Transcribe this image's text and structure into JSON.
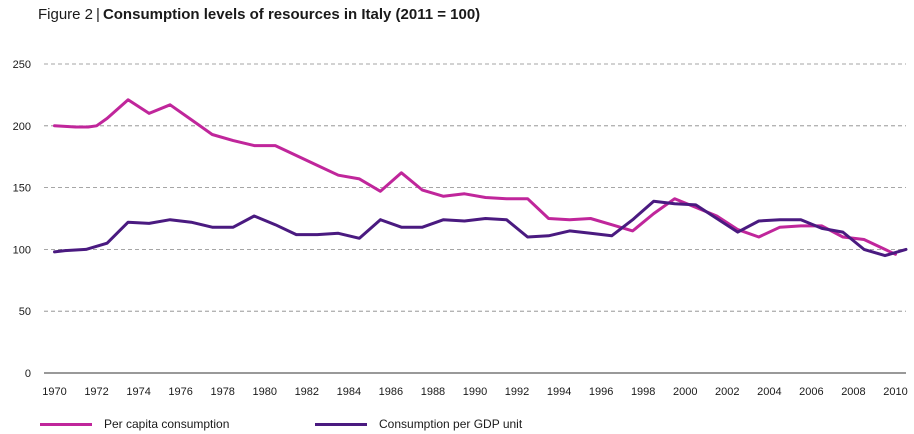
{
  "figure": {
    "prefix": "Figure 2",
    "separator": "|",
    "title": "Consumption levels of resources in Italy (2011 = 100)"
  },
  "chart_data": {
    "type": "line",
    "title": "Consumption levels of resources in Italy (2011 = 100)",
    "xlabel": "",
    "ylabel": "",
    "xlim": [
      1969.5,
      2010.5
    ],
    "ylim": [
      0,
      250
    ],
    "y_ticks": [
      0,
      50,
      100,
      150,
      200,
      250
    ],
    "x_ticks": [
      1970,
      1972,
      1974,
      1976,
      1978,
      1980,
      1982,
      1984,
      1986,
      1988,
      1990,
      1992,
      1994,
      1996,
      1998,
      2000,
      2002,
      2004,
      2006,
      2008,
      2010
    ],
    "grid": "horizontal dashed",
    "legend_position": "bottom",
    "series": [
      {
        "name": "Per capita consumption",
        "color": "#c0269b",
        "x": [
          1970,
          1971,
          1971.6,
          1972,
          1972.5,
          1973.5,
          1974.5,
          1975.5,
          1976.5,
          1977.5,
          1978.5,
          1979.5,
          1980.5,
          1981.5,
          1982.5,
          1983.5,
          1984.5,
          1985.5,
          1986.5,
          1987.5,
          1988.5,
          1989.5,
          1990.5,
          1991.5,
          1992.5,
          1993.5,
          1994.5,
          1995.5,
          1996.5,
          1997.5,
          1998.5,
          1999.5,
          2000.5,
          2001.5,
          2002.5,
          2003.5,
          2004.5,
          2005.5,
          2006.5,
          2007.5,
          2008.5,
          2009.5,
          2010
        ],
        "values": [
          200,
          199,
          199,
          200,
          206,
          221,
          210,
          217,
          205,
          193,
          188,
          184,
          184,
          176,
          168,
          160,
          157,
          147,
          162,
          148,
          143,
          145,
          142,
          141,
          141,
          125,
          124,
          125,
          120,
          115,
          129,
          141,
          134,
          127,
          116,
          110,
          118,
          119,
          119,
          110,
          108,
          100,
          96
        ]
      },
      {
        "name": "Consumption per GDP unit",
        "color": "#4a1a80",
        "x": [
          1970,
          1970.5,
          1971.5,
          1972.5,
          1973.5,
          1974.5,
          1975.5,
          1976.5,
          1977.5,
          1978.5,
          1979.5,
          1980.5,
          1981.5,
          1982.5,
          1983.5,
          1984.5,
          1985.5,
          1986.5,
          1987.5,
          1988.5,
          1989.5,
          1990.5,
          1991.5,
          1992.5,
          1993.5,
          1994.5,
          1995.5,
          1996.5,
          1997.5,
          1998.5,
          1999.5,
          2000.5,
          2001.5,
          2002.5,
          2003.5,
          2004.5,
          2005.5,
          2006.5,
          2007.5,
          2008.5,
          2009.5,
          2010.5
        ],
        "values": [
          98,
          99,
          100,
          105,
          122,
          121,
          124,
          122,
          118,
          118,
          127,
          120,
          112,
          112,
          113,
          109,
          124,
          118,
          118,
          124,
          123,
          125,
          124,
          110,
          111,
          115,
          113,
          111,
          124,
          139,
          137,
          136,
          125,
          114,
          123,
          124,
          124,
          117,
          114,
          100,
          95,
          100
        ]
      }
    ]
  }
}
